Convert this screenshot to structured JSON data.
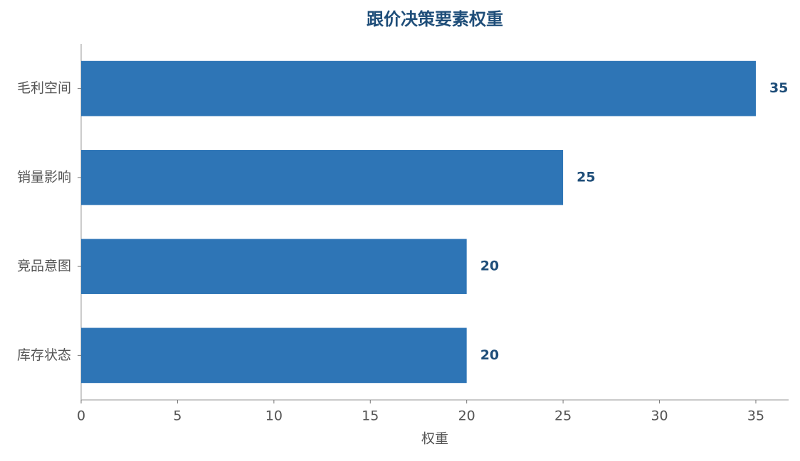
{
  "chart_data": {
    "type": "bar",
    "orientation": "horizontal",
    "title": "跟价决策要素权重",
    "xlabel": "权重",
    "categories": [
      "毛利空间",
      "销量影响",
      "竞品意图",
      "库存状态"
    ],
    "values": [
      35,
      25,
      20,
      20
    ],
    "color": "#2e75b6",
    "label_color": "#1f4e79",
    "xlim": [
      0,
      36.7
    ],
    "xticks": [
      0,
      5,
      10,
      15,
      20,
      25,
      30,
      35
    ],
    "grid": false
  }
}
